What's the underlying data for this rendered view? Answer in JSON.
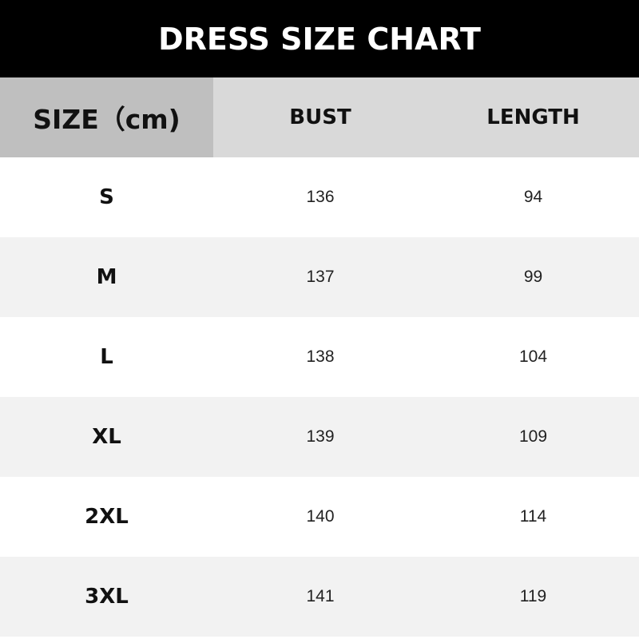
{
  "title": "DRESS SIZE CHART",
  "headers": [
    "SIZE（cm)",
    "BUST",
    "LENGTH"
  ],
  "rows": [
    [
      "S",
      "136",
      "94"
    ],
    [
      "M",
      "137",
      "99"
    ],
    [
      "L",
      "138",
      "104"
    ],
    [
      "XL",
      "139",
      "109"
    ],
    [
      "2XL",
      "140",
      "114"
    ],
    [
      "3XL",
      "141",
      "119"
    ]
  ],
  "colors": {
    "title_bg": "#000000",
    "size_header_bg": "#bfbfbf",
    "header_bg": "#d9d9d9",
    "alt_row_bg": "#f2f2f2"
  }
}
